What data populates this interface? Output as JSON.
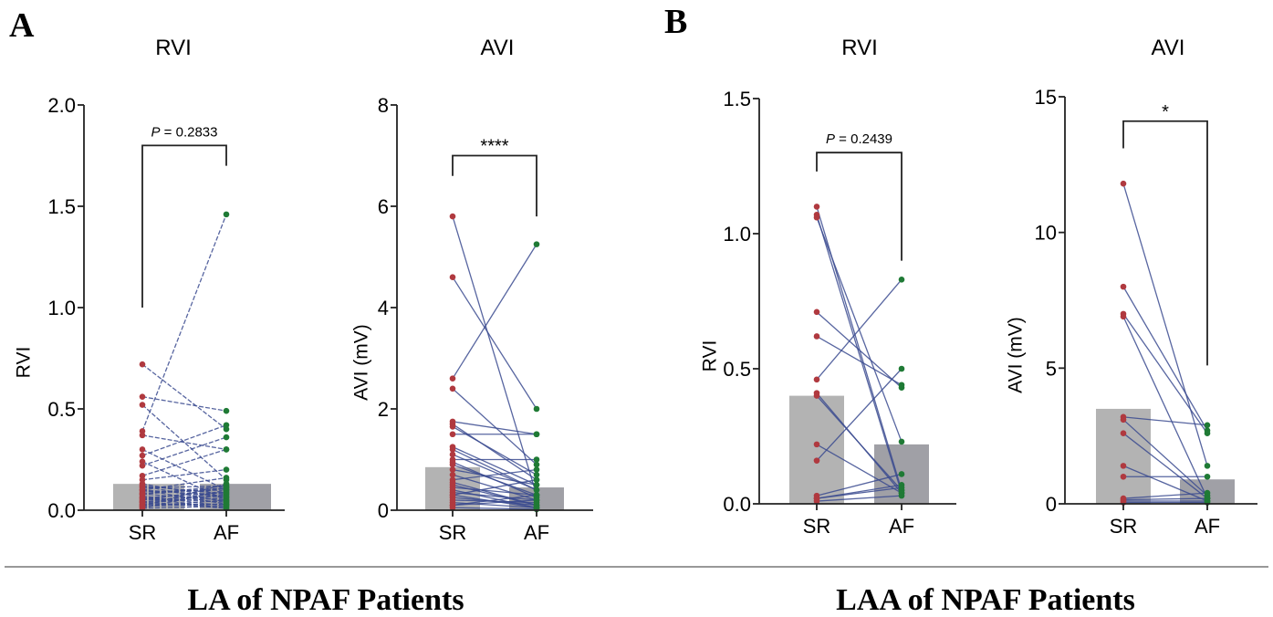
{
  "panel_labels": [
    "A",
    "B"
  ],
  "group_titles": [
    "LA of NPAF Patients",
    "LAA of NPAF Patients"
  ],
  "colors": {
    "sr_point": "#b0393f",
    "af_point": "#1f7a35",
    "line": "#3a4a8f",
    "bar_sr": "#b3b3b3",
    "bar_af": "#a0a0a6",
    "axis": "#222222"
  },
  "chart_data": [
    {
      "type": "bar",
      "panel": "A",
      "title": "RVI",
      "ylabel": "RVI",
      "xlabel": "",
      "categories": [
        "SR",
        "AF"
      ],
      "ylim": [
        0,
        2.0
      ],
      "yticks": [
        "0.0",
        "0.5",
        "1.0",
        "1.5",
        "2.0"
      ],
      "ytick_values": [
        0,
        0.5,
        1.0,
        1.5,
        2.0
      ],
      "bar_means": [
        0.13,
        0.13
      ],
      "line_style": "dashed",
      "significance": {
        "label": "P = 0.2833",
        "italic_prefix": "P",
        "text": " = 0.2833",
        "left_end": 1.0,
        "right_end": 1.7,
        "level": 1.8
      },
      "pairs": {
        "SR": [
          0.72,
          0.56,
          0.52,
          0.39,
          0.37,
          0.3,
          0.27,
          0.24,
          0.22,
          0.17,
          0.15,
          0.13,
          0.12,
          0.11,
          0.1,
          0.1,
          0.09,
          0.08,
          0.08,
          0.07,
          0.06,
          0.06,
          0.05,
          0.05,
          0.04,
          0.04,
          0.03,
          0.03,
          0.02,
          0.02,
          0.01,
          0.01,
          0.12,
          0.1,
          0.08,
          0.06,
          0.04,
          0.02
        ],
        "AF": [
          0.4,
          0.49,
          0.15,
          1.46,
          0.3,
          0.1,
          0.42,
          0.05,
          0.36,
          0.3,
          0.2,
          0.06,
          0.08,
          0.12,
          0.03,
          0.16,
          0.1,
          0.05,
          0.12,
          0.02,
          0.09,
          0.04,
          0.11,
          0.07,
          0.01,
          0.06,
          0.08,
          0.03,
          0.05,
          0.13,
          0.02,
          0.1,
          0.04,
          0.07,
          0.11,
          0.01,
          0.09,
          0.03
        ]
      }
    },
    {
      "type": "bar",
      "panel": "A",
      "title": "AVI",
      "ylabel": "AVI (mV)",
      "xlabel": "",
      "categories": [
        "SR",
        "AF"
      ],
      "ylim": [
        0,
        8
      ],
      "yticks": [
        "0",
        "2",
        "4",
        "6",
        "8"
      ],
      "ytick_values": [
        0,
        2,
        4,
        6,
        8
      ],
      "bar_means": [
        0.85,
        0.45
      ],
      "line_style": "solid",
      "significance": {
        "label": "****",
        "italic_prefix": "",
        "text": "****",
        "left_end": 6.6,
        "right_end": 5.8,
        "level": 7.0
      },
      "pairs": {
        "SR": [
          5.8,
          4.6,
          2.6,
          2.4,
          1.75,
          1.7,
          1.5,
          1.25,
          1.1,
          1.0,
          0.9,
          0.8,
          0.7,
          0.6,
          0.5,
          0.45,
          0.4,
          0.35,
          0.3,
          0.25,
          0.2,
          0.15,
          0.1,
          0.05,
          1.65,
          1.2,
          0.95,
          0.55,
          0.3,
          0.1
        ],
        "AF": [
          0.3,
          2.0,
          5.25,
          0.9,
          1.5,
          0.6,
          1.5,
          0.5,
          0.4,
          1.0,
          0.3,
          0.5,
          0.2,
          0.8,
          0.1,
          0.3,
          0.05,
          0.2,
          0.6,
          0.1,
          0.15,
          0.05,
          0.3,
          0.02,
          0.7,
          0.4,
          0.25,
          0.1,
          0.05,
          0.2
        ]
      }
    },
    {
      "type": "bar",
      "panel": "B",
      "title": "RVI",
      "ylabel": "RVI",
      "xlabel": "",
      "categories": [
        "SR",
        "AF"
      ],
      "ylim": [
        0,
        1.5
      ],
      "yticks": [
        "0.0",
        "0.5",
        "1.0",
        "1.5"
      ],
      "ytick_values": [
        0,
        0.5,
        1.0,
        1.5
      ],
      "bar_means": [
        0.4,
        0.22
      ],
      "line_style": "solid",
      "significance": {
        "label": "P = 0.2439",
        "italic_prefix": "P",
        "text": " = 0.2439",
        "left_end": 1.23,
        "right_end": 0.9,
        "level": 1.3
      },
      "pairs": {
        "SR": [
          1.1,
          1.07,
          1.06,
          0.71,
          0.62,
          0.46,
          0.41,
          0.4,
          0.22,
          0.16,
          0.03,
          0.02,
          0.02,
          0.01
        ],
        "AF": [
          0.05,
          0.04,
          0.23,
          0.43,
          0.44,
          0.83,
          0.04,
          0.05,
          0.04,
          0.5,
          0.11,
          0.07,
          0.06,
          0.03
        ]
      }
    },
    {
      "type": "bar",
      "panel": "B",
      "title": "AVI",
      "ylabel": "AVI (mV)",
      "xlabel": "",
      "categories": [
        "SR",
        "AF"
      ],
      "ylim": [
        0,
        15
      ],
      "yticks": [
        "0",
        "5",
        "10",
        "15"
      ],
      "ytick_values": [
        0,
        5,
        10,
        15
      ],
      "bar_means": [
        3.5,
        0.9
      ],
      "line_style": "solid",
      "significance": {
        "label": "*",
        "italic_prefix": "",
        "text": "*",
        "left_end": 13.1,
        "right_end": 5.1,
        "level": 14.1
      },
      "pairs": {
        "SR": [
          11.8,
          8.0,
          7.0,
          6.9,
          3.2,
          3.1,
          2.6,
          1.4,
          1.0,
          0.2,
          0.15,
          0.1,
          0.05
        ],
        "AF": [
          1.4,
          2.7,
          2.6,
          0.2,
          2.9,
          0.3,
          0.2,
          0.1,
          1.0,
          0.4,
          0.2,
          0.1,
          0.05
        ]
      }
    }
  ]
}
